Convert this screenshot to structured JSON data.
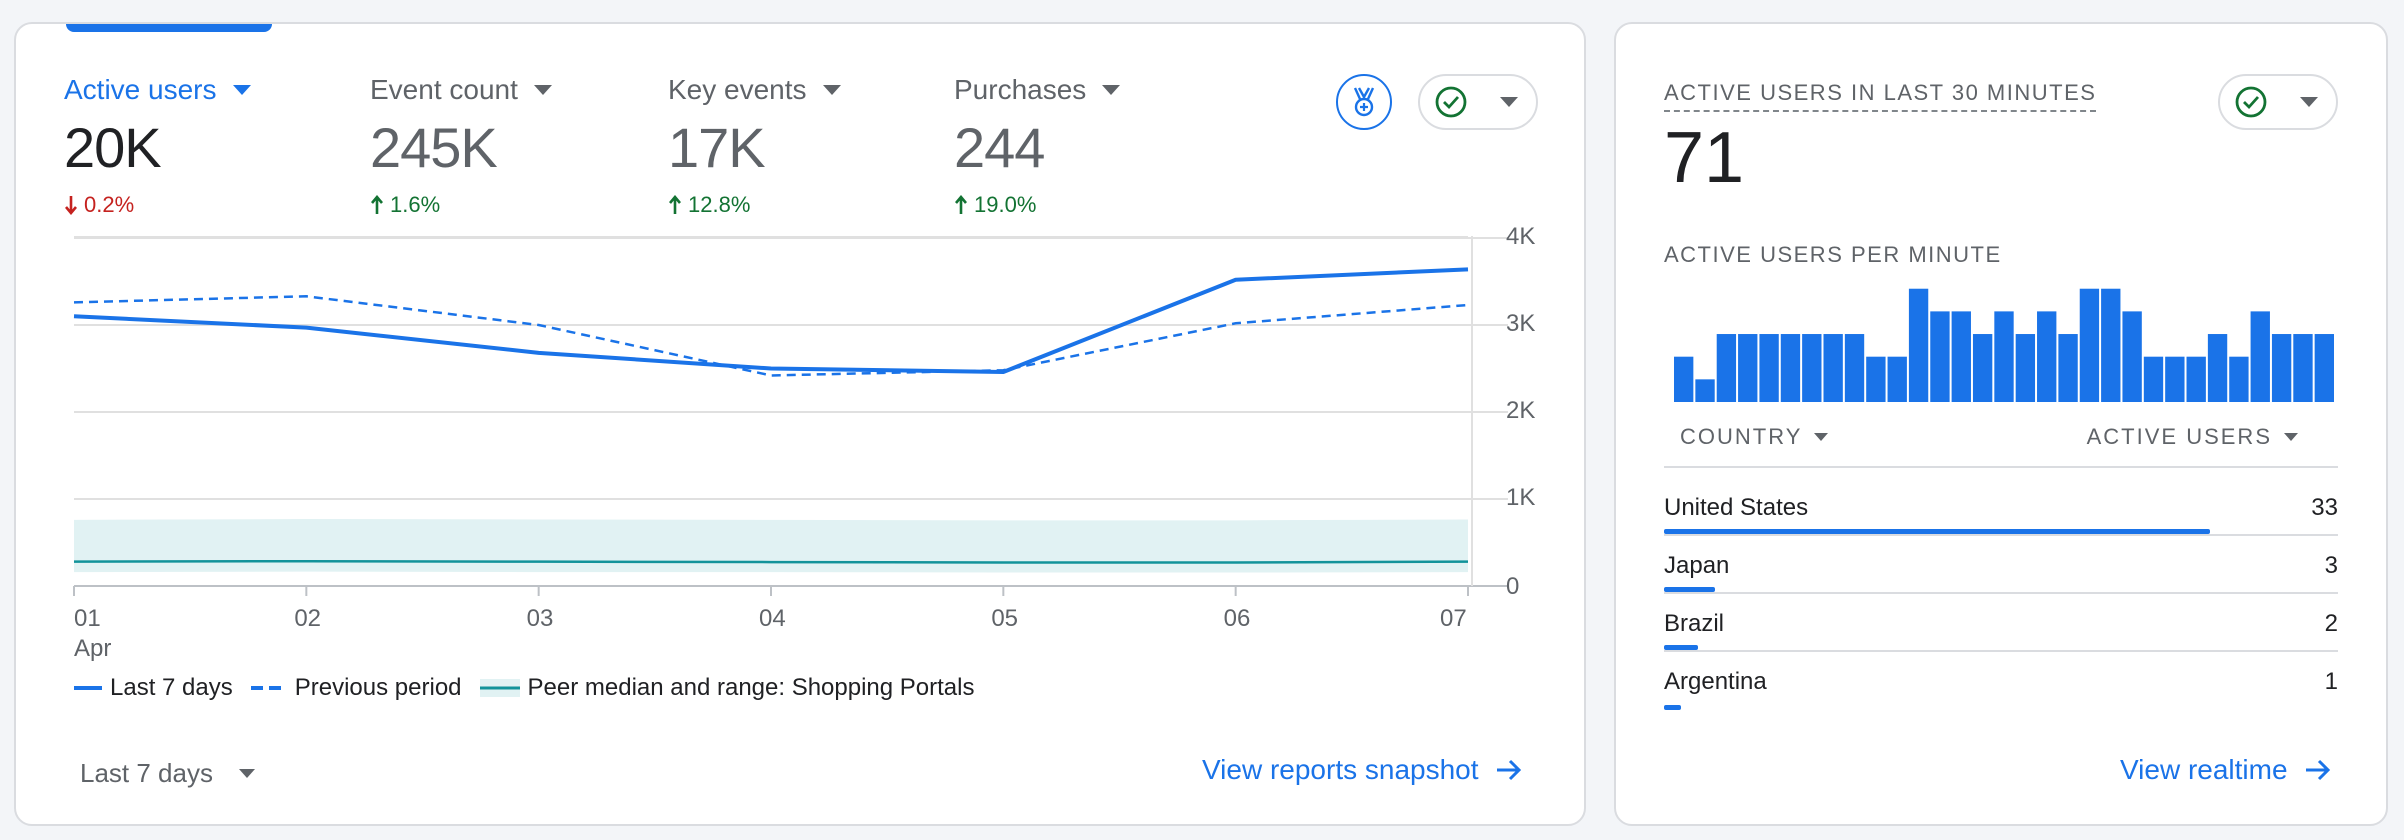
{
  "colors": {
    "accent": "#1a73e8",
    "down": "#c5221f",
    "up": "#137333",
    "peer": "#12939a"
  },
  "metrics": [
    {
      "label": "Active users",
      "value": "20K",
      "delta": "0.2%",
      "direction": "down",
      "active": true
    },
    {
      "label": "Event count",
      "value": "245K",
      "delta": "1.6%",
      "direction": "up",
      "active": false
    },
    {
      "label": "Key events",
      "value": "17K",
      "delta": "12.8%",
      "direction": "up",
      "active": false
    },
    {
      "label": "Purchases",
      "value": "244",
      "delta": "19.0%",
      "direction": "up",
      "active": false
    }
  ],
  "header_icons": {
    "insights": "medal-icon",
    "status": "check-circle-icon"
  },
  "chart_data": {
    "type": "line",
    "x": [
      "01",
      "02",
      "03",
      "04",
      "05",
      "06",
      "07"
    ],
    "x_sublabel": "Apr",
    "y_ticks": [
      "0",
      "1K",
      "2K",
      "3K",
      "4K"
    ],
    "ylim": [
      0,
      4000
    ],
    "grid": true,
    "series": [
      {
        "name": "Last 7 days",
        "style": "solid",
        "values": [
          3100,
          2970,
          2680,
          2500,
          2460,
          3520,
          3640
        ]
      },
      {
        "name": "Previous period",
        "style": "dashed",
        "values": [
          3260,
          3330,
          3000,
          2420,
          2480,
          3020,
          3230
        ]
      },
      {
        "name": "Peer median and range: Shopping Portals",
        "style": "band",
        "median": [
          280,
          285,
          280,
          275,
          270,
          270,
          280
        ],
        "low": [
          160,
          165,
          160,
          160,
          155,
          155,
          160
        ],
        "high": [
          760,
          770,
          765,
          760,
          755,
          755,
          765
        ]
      }
    ],
    "legend_position": "bottom-left"
  },
  "footer": {
    "range": "Last 7 days",
    "link": "View reports snapshot"
  },
  "realtime": {
    "title": "ACTIVE USERS IN LAST 30 MINUTES",
    "value": "71",
    "sub": "ACTIVE USERS PER MINUTE",
    "per_minute": [
      2,
      1,
      3,
      3,
      3,
      3,
      3,
      3,
      3,
      2,
      2,
      5,
      4,
      4,
      3,
      4,
      3,
      4,
      3,
      5,
      5,
      4,
      2,
      2,
      2,
      3,
      2,
      4,
      3,
      3,
      3
    ],
    "col_country": "COUNTRY",
    "col_users": "ACTIVE USERS",
    "rows": [
      {
        "country": "United States",
        "users": "33",
        "share": 0.81
      },
      {
        "country": "Japan",
        "users": "3",
        "share": 0.075
      },
      {
        "country": "Brazil",
        "users": "2",
        "share": 0.05
      },
      {
        "country": "Argentina",
        "users": "1",
        "share": 0.025
      }
    ],
    "link": "View realtime"
  }
}
